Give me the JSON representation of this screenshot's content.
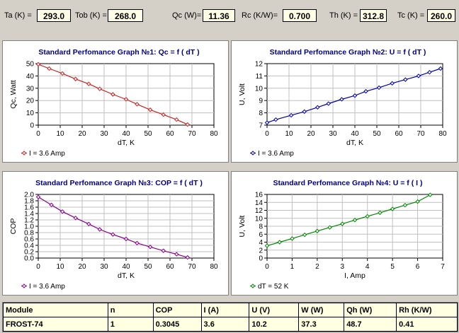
{
  "params": [
    {
      "label": "Ta (K) =",
      "value": "293.0"
    },
    {
      "label": "Tob (K) =",
      "value": "268.0"
    },
    {
      "label": "Qc (W)=",
      "value": "11.36"
    },
    {
      "label": "Rc (K/W)=",
      "value": "0.700"
    },
    {
      "label": "Th (K) =",
      "value": "312.8"
    },
    {
      "label": "Tc (K) =",
      "value": "260.0"
    }
  ],
  "chart_data": [
    {
      "type": "line",
      "title": "Standard Perfomance Graph №1: Qc = f ( dT )",
      "xlabel": "dT, K",
      "ylabel": "Qc, Watt",
      "xlim": [
        0,
        80
      ],
      "ylim": [
        0,
        50
      ],
      "xticks": [
        0,
        10,
        20,
        30,
        40,
        50,
        60,
        70,
        80
      ],
      "yticks": [
        0,
        10,
        20,
        30,
        40,
        50
      ],
      "color": "#cc2222",
      "series": [
        {
          "name": "I = 3.6 Amp",
          "x": [
            0,
            5,
            11,
            17,
            23,
            28,
            34,
            40,
            45,
            51,
            57,
            63,
            68
          ],
          "y": [
            49.5,
            46,
            42,
            37.5,
            33.5,
            29.5,
            25,
            21,
            17,
            12.5,
            8.5,
            4.5,
            0.5
          ]
        }
      ]
    },
    {
      "type": "line",
      "title": "Standard Perfomance Graph №2: U = f ( dT )",
      "xlabel": "dT, K",
      "ylabel": "U, Volt",
      "xlim": [
        0,
        80
      ],
      "ylim": [
        7,
        12
      ],
      "xticks": [
        0,
        10,
        20,
        30,
        40,
        50,
        60,
        70,
        80
      ],
      "yticks": [
        7,
        8,
        9,
        10,
        11,
        12
      ],
      "color": "#0000aa",
      "series": [
        {
          "name": "I = 3.6 Amp",
          "x": [
            0,
            4,
            11,
            17,
            23,
            28,
            34,
            40,
            45,
            51,
            57,
            63,
            69,
            74,
            79
          ],
          "y": [
            7.2,
            7.45,
            7.8,
            8.1,
            8.45,
            8.75,
            9.1,
            9.4,
            9.75,
            10.05,
            10.4,
            10.7,
            11.0,
            11.3,
            11.6
          ]
        }
      ]
    },
    {
      "type": "line",
      "title": "Standard Perfomance Graph №3: COP = f ( dT )",
      "xlabel": "dT, K",
      "ylabel": "COP",
      "xlim": [
        0,
        80
      ],
      "ylim": [
        0,
        2.0
      ],
      "xticks": [
        0,
        10,
        20,
        30,
        40,
        50,
        60,
        70,
        80
      ],
      "yticks": [
        0,
        0.2,
        0.4,
        0.6,
        0.8,
        1.0,
        1.2,
        1.4,
        1.6,
        1.8,
        2.0
      ],
      "yticklabels": [
        "0.0",
        "0.2",
        "0.4",
        "0.6",
        "0.8",
        "1.0",
        "1.2",
        "1.4",
        "1.6",
        "1.8",
        "2.0"
      ],
      "color": "#880088",
      "series": [
        {
          "name": "I = 3.6 Amp",
          "x": [
            0,
            6,
            11,
            17,
            23,
            28,
            34,
            40,
            45,
            51,
            57,
            63,
            68
          ],
          "y": [
            1.92,
            1.67,
            1.46,
            1.26,
            1.07,
            0.9,
            0.74,
            0.6,
            0.47,
            0.35,
            0.23,
            0.12,
            0.02
          ]
        }
      ]
    },
    {
      "type": "line",
      "title": "Standard Perfomance Graph №4: U = f (  I  )",
      "xlabel": "I, Amp",
      "ylabel": "U, Volt",
      "xlim": [
        0,
        7
      ],
      "ylim": [
        0,
        16
      ],
      "xticks": [
        0,
        1,
        2,
        3,
        4,
        5,
        6,
        7
      ],
      "yticks": [
        0,
        2,
        4,
        6,
        8,
        10,
        12,
        14,
        16
      ],
      "color": "#008800",
      "series": [
        {
          "name": "dT = 52 K",
          "x": [
            0,
            0.5,
            1.0,
            1.5,
            2.0,
            2.5,
            3.0,
            3.5,
            4.0,
            4.5,
            5.0,
            5.5,
            6.0,
            6.5
          ],
          "y": [
            3.1,
            4.0,
            4.9,
            5.85,
            6.8,
            7.7,
            8.6,
            9.55,
            10.5,
            11.4,
            12.35,
            13.3,
            14.2,
            15.9
          ]
        }
      ]
    }
  ],
  "table": {
    "headers": [
      "Module",
      "n",
      "COP",
      "I (A)",
      "U (V)",
      "W (W)",
      "Qh (W)",
      "Rh (K/W)"
    ],
    "row": [
      "FROST-74",
      "1",
      "0.3045",
      "3.6",
      "10.2",
      "37.3",
      "48.7",
      "0.41"
    ]
  }
}
